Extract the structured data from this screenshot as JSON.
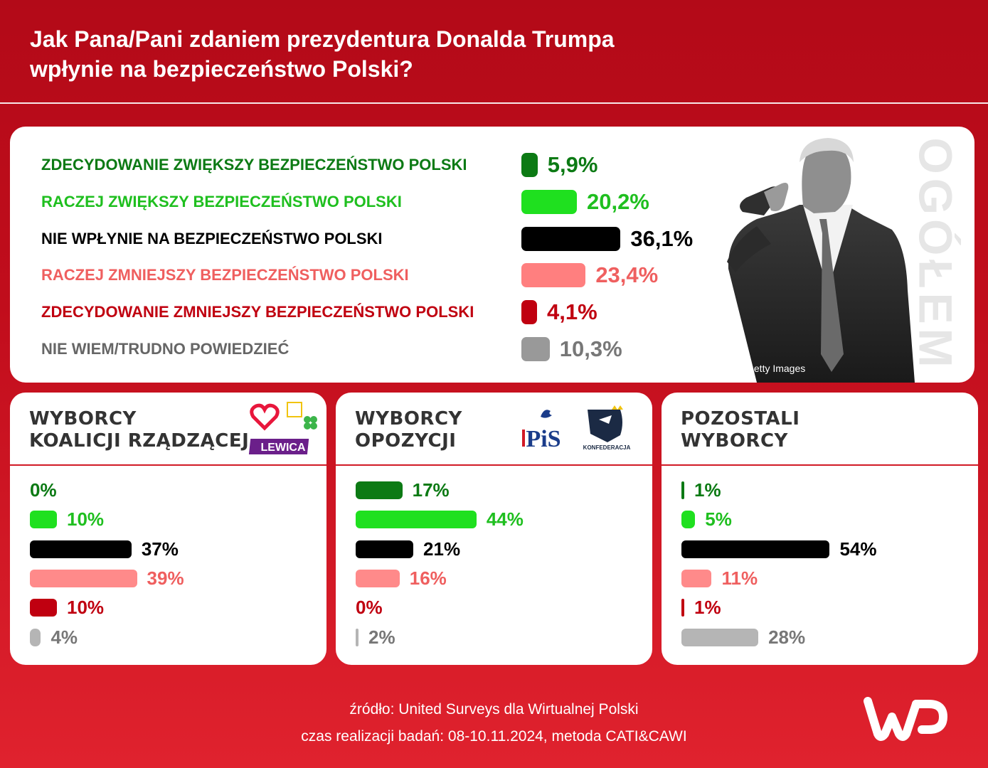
{
  "title_line1": "Jak Pana/Pani zdaniem prezydentura Donalda Trumpa",
  "title_line2": "wpłynie na bezpieczeństwo Polski?",
  "colors": [
    "#0c7a14",
    "#1fe01f",
    "#000000",
    "#ff7f7f",
    "#c00010",
    "#999999"
  ],
  "small_colors": [
    "#0c7a14",
    "#1fe01f",
    "#000000",
    "#ff8a8a",
    "#c00010",
    "#b5b5b5"
  ],
  "photo": {
    "credit": "Getty Images"
  },
  "side_label": "OGÓŁEM",
  "chart_data": [
    {
      "type": "bar",
      "orientation": "horizontal",
      "title": "OGÓŁEM",
      "categories": [
        "ZDECYDOWANIE ZWIĘKSZY BEZPIECZEŃSTWO POLSKI",
        "RACZEJ ZWIĘKSZY BEZPIECZEŃSTWO POLSKI",
        "NIE WPŁYNIE NA BEZPIECZEŃSTWO POLSKI",
        "RACZEJ ZMNIEJSZY BEZPIECZEŃSTWO POLSKI",
        "ZDECYDOWANIE ZMNIEJSZY BEZPIECZEŃSTWO POLSKI",
        "NIE WIEM/TRUDNO POWIEDZIEĆ"
      ],
      "values": [
        5.9,
        20.2,
        36.1,
        23.4,
        4.1,
        10.3
      ],
      "labels": [
        "5,9%",
        "20,2%",
        "36,1%",
        "23,4%",
        "4,1%",
        "10,3%"
      ]
    },
    {
      "type": "bar",
      "orientation": "horizontal",
      "title": "WYBORCY KOALICJI RZĄDZĄCEJ",
      "header_lines": [
        "WYBORCY",
        "KOALICJI RZĄDZĄCEJ"
      ],
      "values": [
        0,
        10,
        37,
        39,
        10,
        4
      ],
      "labels": [
        "0%",
        "10%",
        "37%",
        "39%",
        "10%",
        "4%"
      ]
    },
    {
      "type": "bar",
      "orientation": "horizontal",
      "title": "WYBORCY OPOZYCJI",
      "header_lines": [
        "WYBORCY",
        "OPOZYCJI"
      ],
      "values": [
        17,
        44,
        21,
        16,
        0,
        2
      ],
      "labels": [
        "17%",
        "44%",
        "21%",
        "16%",
        "0%",
        "2%"
      ]
    },
    {
      "type": "bar",
      "orientation": "horizontal",
      "title": "POZOSTALI WYBORCY",
      "header_lines": [
        "POZOSTALI",
        "WYBORCY"
      ],
      "values": [
        1,
        5,
        54,
        11,
        1,
        28
      ],
      "labels": [
        "1%",
        "5%",
        "54%",
        "11%",
        "1%",
        "28%"
      ]
    }
  ],
  "logos": {
    "lewica": "LEWICA",
    "pis": "PiS",
    "konfederacja": "KONFEDERACJA"
  },
  "footer": {
    "source": "źródło: United Surveys dla Wirtualnej Polski",
    "method": "czas realizacji badań: 08-10.11.2024, metoda CATI&CAWI"
  },
  "brand_logo": "wp-logo"
}
